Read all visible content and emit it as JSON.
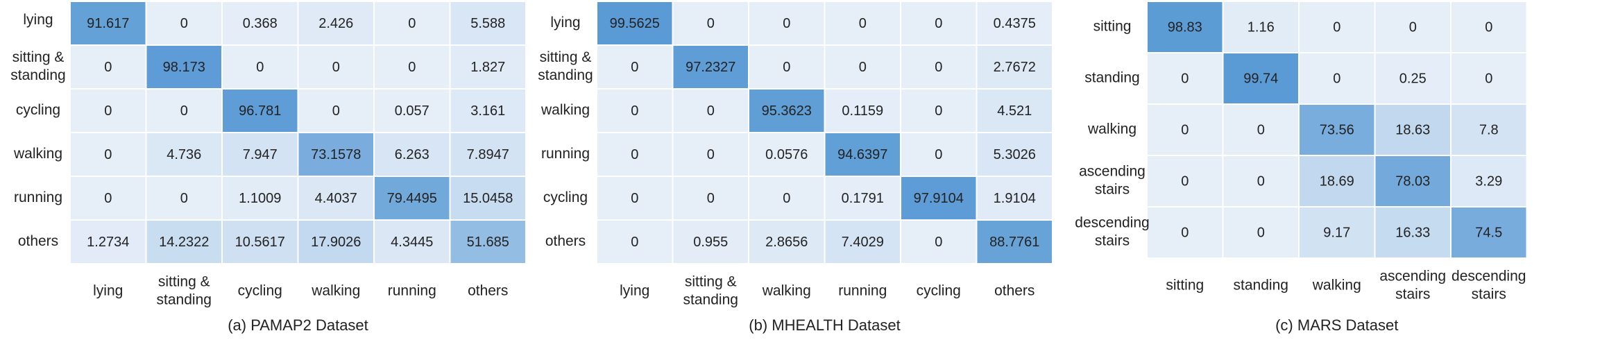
{
  "chart_data": [
    {
      "type": "heatmap",
      "caption": "(a) PAMAP2 Dataset",
      "rows": [
        "lying",
        "sitting & standing",
        "cycling",
        "walking",
        "running",
        "others"
      ],
      "cols": [
        "lying",
        "sitting & standing",
        "cycling",
        "walking",
        "running",
        "others"
      ],
      "values": [
        [
          "91.617",
          "0",
          "0.368",
          "2.426",
          "0",
          "5.588"
        ],
        [
          "0",
          "98.173",
          "0",
          "0",
          "0",
          "1.827"
        ],
        [
          "0",
          "0",
          "96.781",
          "0",
          "0.057",
          "3.161"
        ],
        [
          "0",
          "4.736",
          "7.947",
          "73.1578",
          "6.263",
          "7.8947"
        ],
        [
          "0",
          "0",
          "1.1009",
          "4.4037",
          "79.4495",
          "15.0458"
        ],
        [
          "1.2734",
          "14.2322",
          "10.5617",
          "17.9026",
          "4.3445",
          "51.685"
        ]
      ]
    },
    {
      "type": "heatmap",
      "caption": "(b) MHEALTH Dataset",
      "rows": [
        "lying",
        "sitting & standing",
        "walking",
        "running",
        "cycling",
        "others"
      ],
      "cols": [
        "lying",
        "sitting & standing",
        "walking",
        "running",
        "cycling",
        "others"
      ],
      "values": [
        [
          "99.5625",
          "0",
          "0",
          "0",
          "0",
          "0.4375"
        ],
        [
          "0",
          "97.2327",
          "0",
          "0",
          "0",
          "2.7672"
        ],
        [
          "0",
          "0",
          "95.3623",
          "0.1159",
          "0",
          "4.521"
        ],
        [
          "0",
          "0",
          "0.0576",
          "94.6397",
          "0",
          "5.3026"
        ],
        [
          "0",
          "0",
          "0",
          "0.1791",
          "97.9104",
          "1.9104"
        ],
        [
          "0",
          "0.955",
          "2.8656",
          "7.4029",
          "0",
          "88.7761"
        ]
      ]
    },
    {
      "type": "heatmap",
      "caption": "(c) MARS Dataset",
      "rows": [
        "sitting",
        "standing",
        "walking",
        "ascending stairs",
        "descending stairs"
      ],
      "cols": [
        "sitting",
        "standing",
        "walking",
        "ascending stairs",
        "descending stairs"
      ],
      "values": [
        [
          "98.83",
          "1.16",
          "0",
          "0",
          "0"
        ],
        [
          "0",
          "99.74",
          "0",
          "0.25",
          "0"
        ],
        [
          "0",
          "0",
          "73.56",
          "18.63",
          "7.8"
        ],
        [
          "0",
          "0",
          "18.69",
          "78.03",
          "3.29"
        ],
        [
          "0",
          "0",
          "9.17",
          "16.33",
          "74.5"
        ]
      ]
    }
  ],
  "colors": {
    "low": "#e6eef8",
    "high": "#5b9bd5",
    "grid": "#ffffff"
  }
}
